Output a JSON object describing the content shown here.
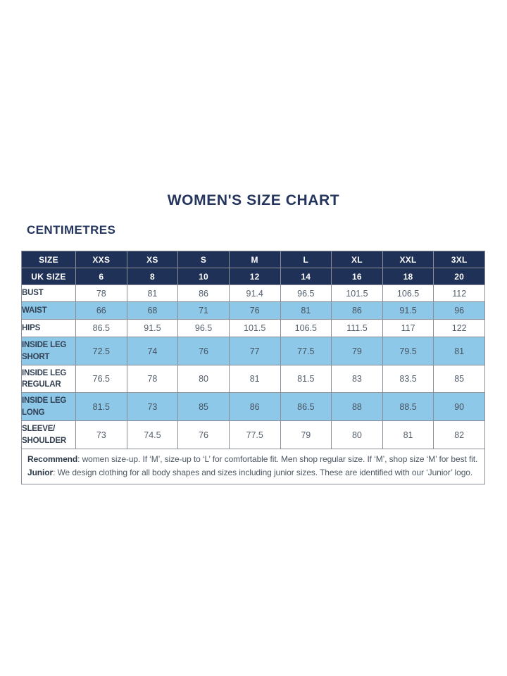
{
  "page": {
    "title": "WOMEN'S SIZE CHART",
    "unit_heading": "CENTIMETRES"
  },
  "chart_data": {
    "type": "table",
    "columns": [
      "SIZE",
      "XXS",
      "XS",
      "S",
      "M",
      "L",
      "XL",
      "XXL",
      "3XL"
    ],
    "uk_size_row": {
      "label": "UK SIZE",
      "values": [
        "6",
        "8",
        "10",
        "12",
        "14",
        "16",
        "18",
        "20"
      ]
    },
    "rows": [
      {
        "label": "BUST",
        "shaded": false,
        "values": [
          "78",
          "81",
          "86",
          "91.4",
          "96.5",
          "101.5",
          "106.5",
          "112"
        ]
      },
      {
        "label": "WAIST",
        "shaded": true,
        "values": [
          "66",
          "68",
          "71",
          "76",
          "81",
          "86",
          "91.5",
          "96"
        ]
      },
      {
        "label": "HIPS",
        "shaded": false,
        "values": [
          "86.5",
          "91.5",
          "96.5",
          "101.5",
          "106.5",
          "111.5",
          "117",
          "122"
        ]
      },
      {
        "label": "INSIDE LEG SHORT",
        "shaded": true,
        "values": [
          "72.5",
          "74",
          "76",
          "77",
          "77.5",
          "79",
          "79.5",
          "81"
        ]
      },
      {
        "label": "INSIDE LEG REGULAR",
        "shaded": false,
        "values": [
          "76.5",
          "78",
          "80",
          "81",
          "81.5",
          "83",
          "83.5",
          "85"
        ]
      },
      {
        "label": "INSIDE LEG LONG",
        "shaded": true,
        "values": [
          "81.5",
          "73",
          "85",
          "86",
          "86.5",
          "88",
          "88.5",
          "90"
        ]
      },
      {
        "label": "SLEEVE/ SHOULDER",
        "shaded": false,
        "values": [
          "73",
          "74.5",
          "76",
          "77.5",
          "79",
          "80",
          "81",
          "82"
        ]
      }
    ],
    "notes": [
      {
        "lead": "Recommend",
        "text": ": women size-up. If ‘M’, size-up to ‘L’ for comfortable fit. Men shop regular size. If ‘M’, shop size ‘M’ for best fit."
      },
      {
        "lead": "Junior",
        "text": ": We design clothing for all body shapes and sizes including junior sizes. These are identified with our ‘Junior’ logo."
      }
    ]
  },
  "colors": {
    "header_navy": "#1f3157",
    "title_navy": "#24355e",
    "shaded_blue": "#8dc8e8",
    "border_gray": "#8a8e96",
    "value_text": "#525e6b",
    "label_text": "#323f52"
  }
}
